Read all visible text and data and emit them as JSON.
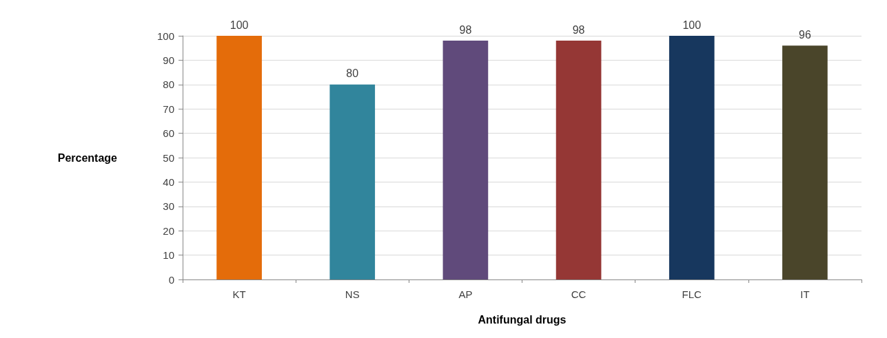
{
  "chart_data": {
    "type": "bar",
    "xlabel": "Antifungal drugs",
    "ylabel": "Percentage",
    "categories": [
      "KT",
      "NS",
      "AP",
      "CC",
      "FLC",
      "IT"
    ],
    "values": [
      100,
      80,
      98,
      98,
      100,
      96
    ],
    "colors": [
      "#e46c0a",
      "#31859c",
      "#604a7b",
      "#953735",
      "#17375e",
      "#4a452a"
    ],
    "ylim": [
      0,
      100
    ],
    "yticks": [
      0,
      10,
      20,
      30,
      40,
      50,
      60,
      70,
      80,
      90,
      100
    ],
    "grid": "y",
    "data_labels": true
  }
}
